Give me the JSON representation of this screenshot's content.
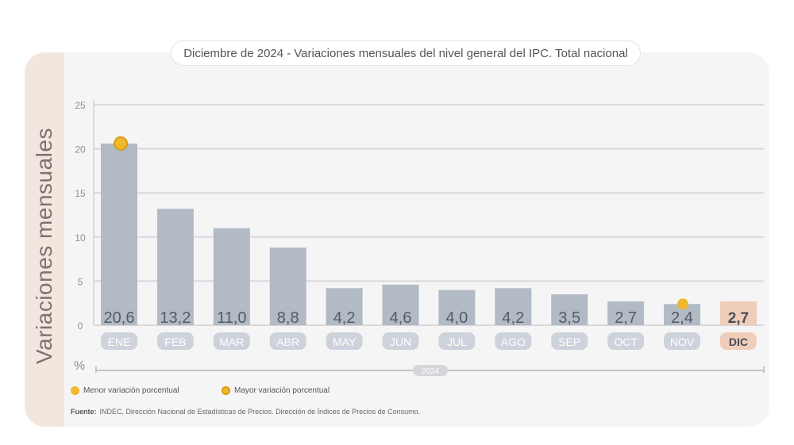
{
  "header": {
    "title_prefix": "Diciembre de 2024 -",
    "title_main": "Variaciones mensuales del nivel general del IPC. Total nacional"
  },
  "legend": {
    "min_label": "Menor variación porcentual",
    "max_label": "Mayor variación porcentual"
  },
  "source": {
    "label": "Fuente:",
    "text": "INDEC, Dirección Nacional de Estadísticas de Precios. Dirección de Índices de Precios de Consumo."
  },
  "chart_data": {
    "type": "bar",
    "ylabel": "Variaciones mensuales",
    "unit_label": "%",
    "year_label": "2024",
    "categories": [
      "ENE",
      "FEB",
      "MAR",
      "ABR",
      "MAY",
      "JUN",
      "JUL",
      "AGO",
      "SEP",
      "OCT",
      "NOV",
      "DIC"
    ],
    "values": [
      20.6,
      13.2,
      11.0,
      8.8,
      4.2,
      4.6,
      4.0,
      4.2,
      3.5,
      2.7,
      2.4,
      2.7
    ],
    "value_labels": [
      "20,6",
      "13,2",
      "11,0",
      "8,8",
      "4,2",
      "4,6",
      "4,0",
      "4,2",
      "3,5",
      "2,7",
      "2,4",
      "2,7"
    ],
    "yticks": [
      0,
      5,
      10,
      15,
      20,
      25
    ],
    "ylim": [
      0,
      25
    ],
    "grid": true,
    "highlight_category": "DIC",
    "max_marker_category": "ENE",
    "min_marker_category": "NOV",
    "colors": {
      "bar": "#b2bac5",
      "bar_highlight": "#f0cdb9",
      "grid": "#dad8dc",
      "tick_pill": "#cdd2db",
      "marker": "#f0b72f",
      "text": "#555b66"
    }
  }
}
